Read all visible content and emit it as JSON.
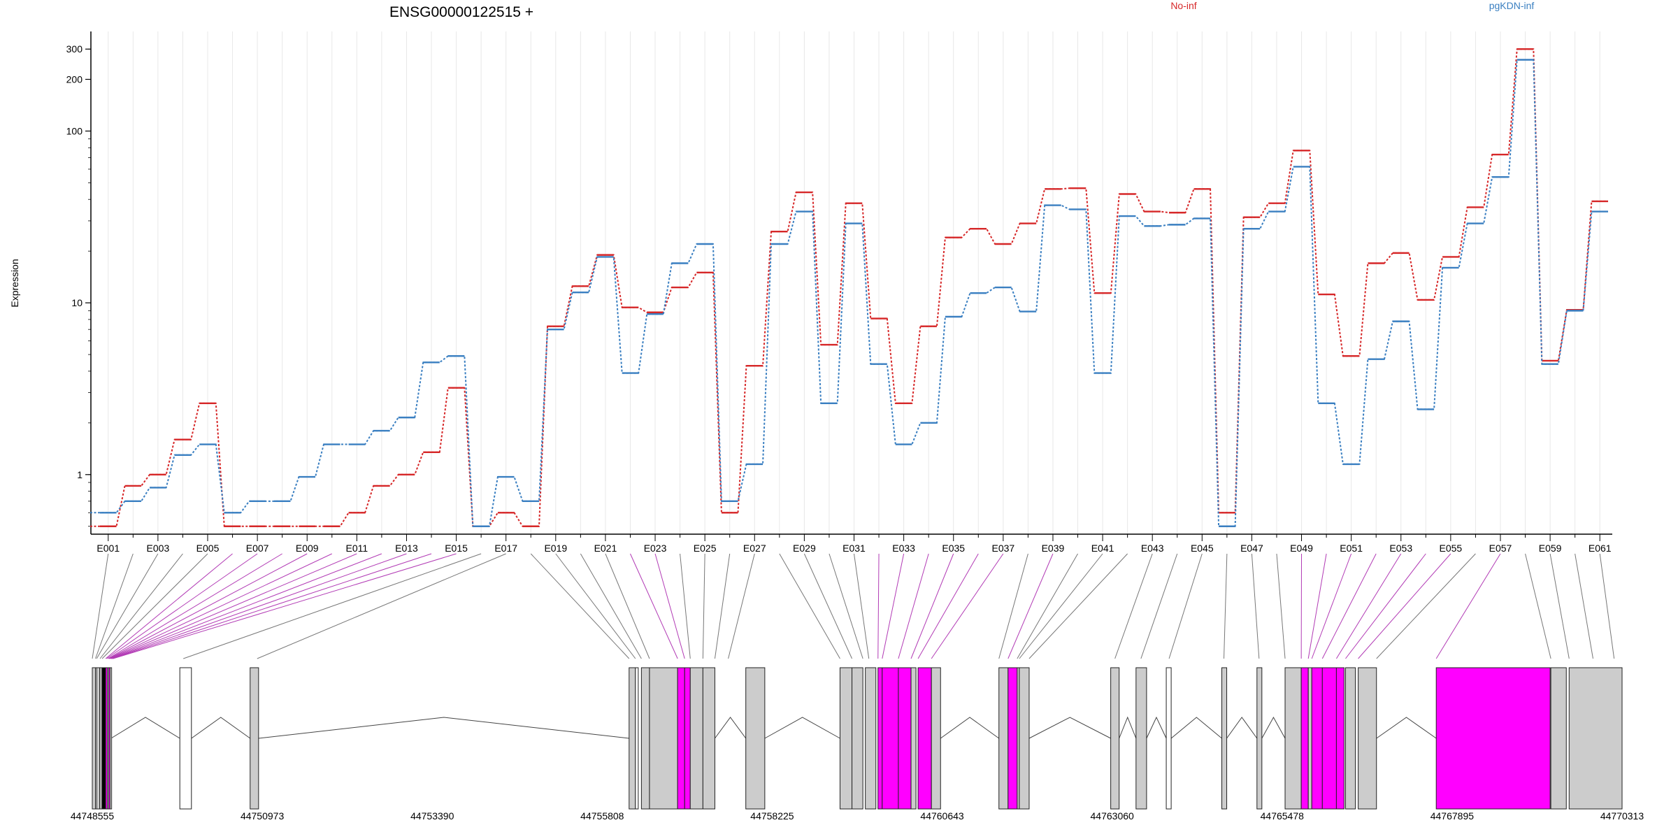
{
  "chart_data": {
    "type": "line",
    "title": "ENSG00000122515 +",
    "ylabel": "Expression",
    "yscale": "log",
    "ylim": [
      0.45,
      380
    ],
    "yticks": [
      1,
      10,
      100,
      200,
      300
    ],
    "ytick_labels": [
      "1",
      "10",
      "100",
      "200",
      "300"
    ],
    "grid": "vertical",
    "legend_placement": "top",
    "categories": [
      "E001",
      "E002",
      "E003",
      "E004",
      "E005",
      "E006",
      "E007",
      "E008",
      "E009",
      "E010",
      "E011",
      "E012",
      "E013",
      "E014",
      "E015",
      "E016",
      "E017",
      "E018",
      "E019",
      "E020",
      "E021",
      "E022",
      "E023",
      "E024",
      "E025",
      "E026",
      "E027",
      "E028",
      "E029",
      "E030",
      "E031",
      "E032",
      "E033",
      "E034",
      "E035",
      "E036",
      "E037",
      "E038",
      "E039",
      "E040",
      "E041",
      "E042",
      "E043",
      "E044",
      "E045",
      "E046",
      "E047",
      "E048",
      "E049",
      "E050",
      "E051",
      "E052",
      "E053",
      "E054",
      "E055",
      "E056",
      "E057",
      "E058",
      "E059",
      "E060",
      "E061"
    ],
    "xtick_labels": [
      "E001",
      "E003",
      "E005",
      "E007",
      "E009",
      "E011",
      "E013",
      "E015",
      "E017",
      "E019",
      "E021",
      "E023",
      "E025",
      "E027",
      "E029",
      "E031",
      "E033",
      "E035",
      "E037",
      "E039",
      "E041",
      "E043",
      "E045",
      "E047",
      "E049",
      "E051",
      "E053",
      "E055",
      "E057",
      "E059",
      "E061"
    ],
    "series": [
      {
        "name": "No-inf",
        "color": "#d62728",
        "values": [
          0.5,
          0.86,
          1.0,
          1.6,
          2.6,
          0.5,
          0.5,
          0.5,
          0.5,
          0.5,
          0.6,
          0.86,
          1.0,
          1.35,
          3.2,
          0.5,
          0.6,
          0.5,
          7.3,
          12.5,
          19.0,
          9.4,
          8.8,
          12.3,
          15.0,
          0.6,
          4.3,
          26.0,
          44.0,
          5.7,
          38.0,
          8.1,
          2.6,
          7.3,
          24.0,
          27.0,
          22.0,
          29.0,
          46.0,
          46.5,
          11.4,
          43.0,
          34.0,
          33.5,
          46.0,
          0.6,
          31.5,
          38.0,
          77.0,
          11.2,
          4.9,
          17.0,
          19.5,
          10.4,
          18.5,
          36.0,
          73.0,
          300.0,
          4.6,
          9.1,
          39.0
        ]
      },
      {
        "name": "pgKDN-inf",
        "color": "#3a7fc1",
        "values": [
          0.6,
          0.7,
          0.84,
          1.3,
          1.5,
          0.6,
          0.7,
          0.7,
          0.97,
          1.5,
          1.5,
          1.8,
          2.15,
          4.5,
          4.9,
          0.5,
          0.97,
          0.7,
          7.0,
          11.5,
          18.5,
          3.9,
          8.6,
          17.0,
          22.0,
          0.7,
          1.15,
          22.0,
          34.0,
          2.6,
          29.0,
          4.4,
          1.5,
          2.0,
          8.3,
          11.4,
          12.3,
          8.9,
          37.0,
          35.0,
          3.9,
          32.0,
          28.0,
          28.5,
          31.0,
          0.5,
          27.0,
          34.0,
          62.0,
          2.6,
          1.15,
          4.7,
          7.8,
          2.4,
          16.0,
          29.0,
          54.0,
          260.0,
          4.4,
          9.0,
          34.0
        ]
      }
    ],
    "gene_model": {
      "start_label": "44748555",
      "end_label": "44770313",
      "coordinate_range": [
        44748555,
        44770313
      ],
      "coordinate_ticks": [
        "44748555",
        "44750973",
        "44753390",
        "44755808",
        "44758225",
        "44760643",
        "44763060",
        "44765478",
        "44767895",
        "44770313"
      ],
      "highlight_color": "#ff00ff",
      "exon_color": "#cccccc",
      "exons": [
        [
          44748555,
          44748600,
          "gray"
        ],
        [
          44748600,
          44748615,
          "white"
        ],
        [
          44748617,
          44748660,
          "gray"
        ],
        [
          44748665,
          44748690,
          "white"
        ],
        [
          44748695,
          44748745,
          "black"
        ],
        [
          44748745,
          44748770,
          "magenta"
        ],
        [
          44748770,
          44748790,
          "gray"
        ],
        [
          44748790,
          44748810,
          "magenta"
        ],
        [
          44748810,
          44748822,
          "white"
        ],
        [
          44749800,
          44749965,
          "white"
        ],
        [
          44750800,
          44750920,
          "gray"
        ],
        [
          44756190,
          44756280,
          "gray"
        ],
        [
          44756280,
          44756320,
          "white"
        ],
        [
          44756365,
          44756480,
          "gray"
        ],
        [
          44756480,
          44756880,
          "gray"
        ],
        [
          44756880,
          44756980,
          "magenta"
        ],
        [
          44756980,
          44757060,
          "magenta"
        ],
        [
          44757060,
          44757240,
          "gray"
        ],
        [
          44757240,
          44757410,
          "gray"
        ],
        [
          44757850,
          44758120,
          "gray"
        ],
        [
          44759190,
          44759360,
          "gray"
        ],
        [
          44759360,
          44759515,
          "gray"
        ],
        [
          44759550,
          44759700,
          "gray"
        ],
        [
          44759730,
          44759790,
          "magenta"
        ],
        [
          44759790,
          44760020,
          "magenta"
        ],
        [
          44760020,
          44760200,
          "magenta"
        ],
        [
          44760200,
          44760270,
          "gray"
        ],
        [
          44760300,
          44760490,
          "magenta"
        ],
        [
          44760490,
          44760620,
          "gray"
        ],
        [
          44761450,
          44761580,
          "gray"
        ],
        [
          44761580,
          44761710,
          "magenta"
        ],
        [
          44761710,
          44761740,
          "gray"
        ],
        [
          44761740,
          44761880,
          "gray"
        ],
        [
          44763040,
          44763160,
          "gray"
        ],
        [
          44763400,
          44763550,
          "gray"
        ],
        [
          44763830,
          44763900,
          "white"
        ],
        [
          44764620,
          44764690,
          "gray"
        ],
        [
          44765120,
          44765190,
          "gray"
        ],
        [
          44765520,
          44765750,
          "gray"
        ],
        [
          44765750,
          44765850,
          "magenta"
        ],
        [
          44765850,
          44765900,
          "gray"
        ],
        [
          44765900,
          44766050,
          "magenta"
        ],
        [
          44766050,
          44766250,
          "magenta"
        ],
        [
          44766250,
          44766360,
          "magenta"
        ],
        [
          44766380,
          44766520,
          "gray"
        ],
        [
          44766560,
          44766820,
          "gray"
        ],
        [
          44767670,
          44769290,
          "magenta"
        ],
        [
          44769300,
          44769520,
          "gray"
        ],
        [
          44769560,
          44770313,
          "gray"
        ]
      ]
    }
  }
}
